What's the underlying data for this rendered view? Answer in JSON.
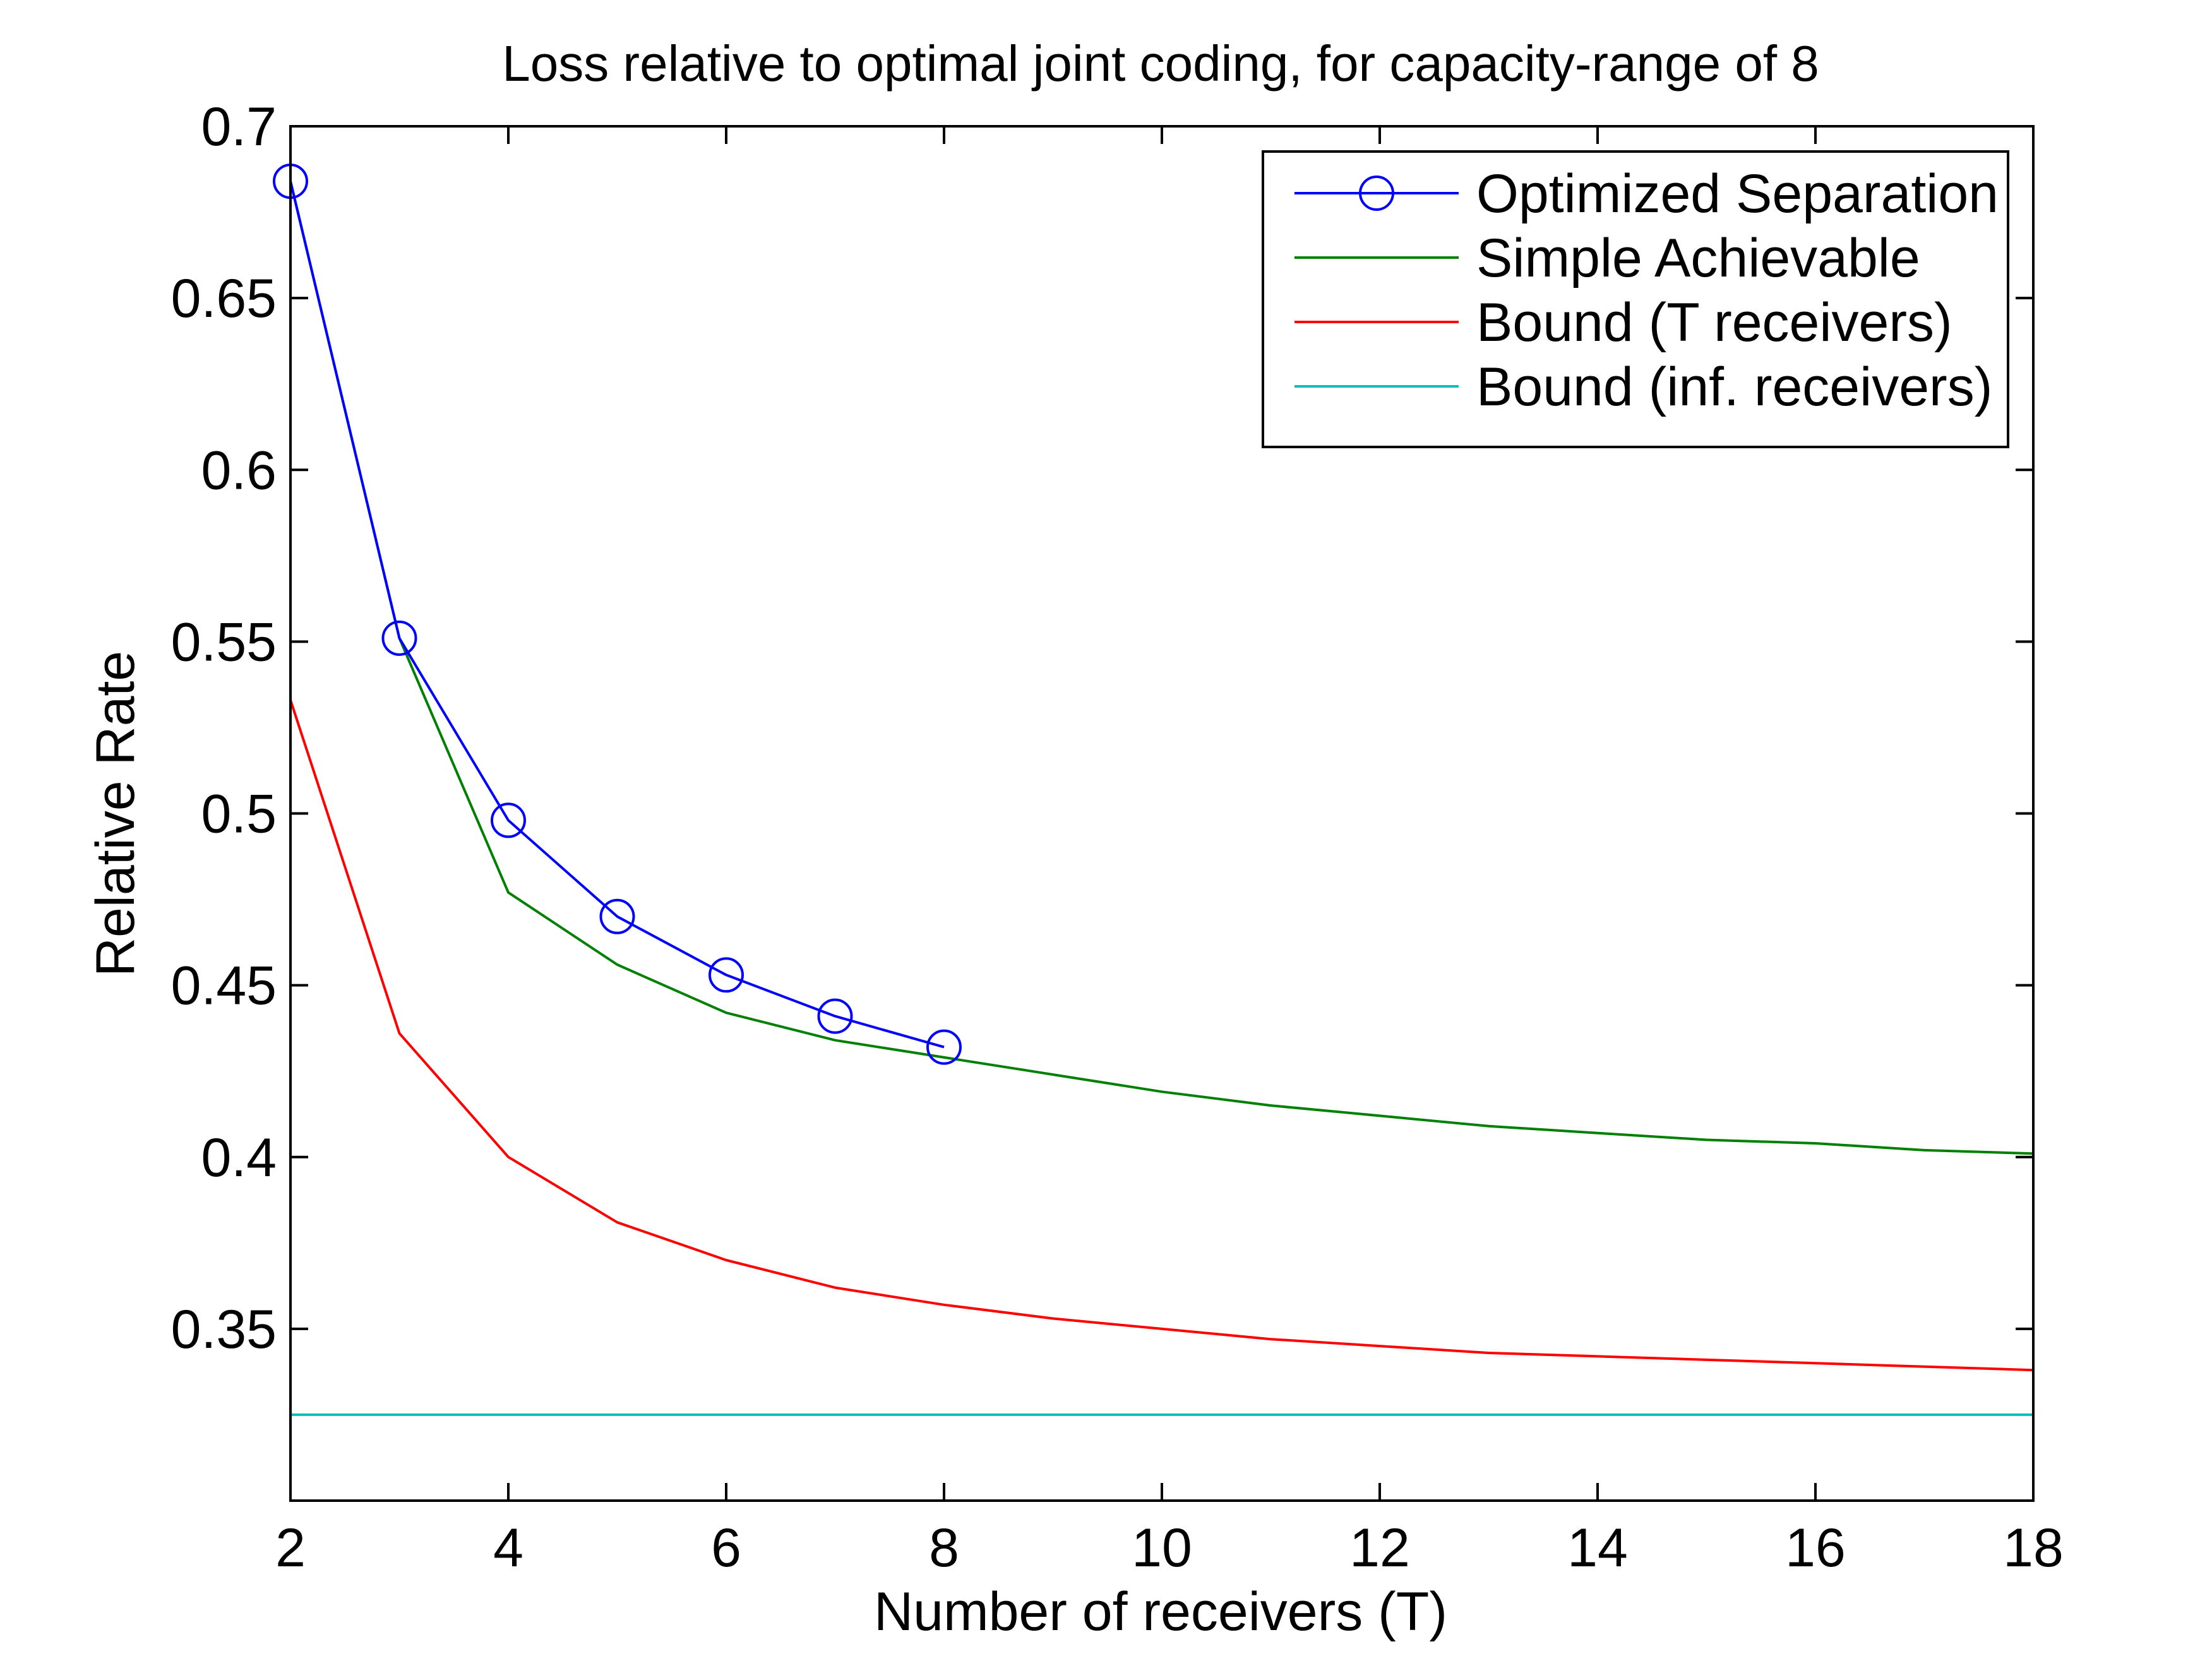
{
  "chart_data": {
    "type": "line",
    "title": "Loss relative to optimal joint coding, for capacity-range of 8",
    "xlabel": "Number of receivers (T)",
    "ylabel": "Relative Rate",
    "xlim": [
      2,
      18
    ],
    "ylim": [
      0.3,
      0.7
    ],
    "xticks": [
      2,
      4,
      6,
      8,
      10,
      12,
      14,
      16,
      18
    ],
    "xtick_labels": [
      "2",
      "4",
      "6",
      "8",
      "10",
      "12",
      "14",
      "16",
      "18"
    ],
    "yticks": [
      0.35,
      0.4,
      0.45,
      0.5,
      0.55,
      0.6,
      0.65,
      0.7
    ],
    "ytick_labels": [
      "0.35",
      "0.4",
      "0.45",
      "0.5",
      "0.55",
      "0.6",
      "0.65",
      "0.7"
    ],
    "grid": false,
    "legend_position": "top-right",
    "series": [
      {
        "name": "Optimized Separation",
        "color": "#0000ff",
        "marker": "circle",
        "x": [
          2,
          3,
          4,
          5,
          6,
          7,
          8
        ],
        "y": [
          0.684,
          0.551,
          0.498,
          0.47,
          0.453,
          0.441,
          0.432
        ]
      },
      {
        "name": "Simple Achievable",
        "color": "#008000",
        "marker": "none",
        "x": [
          2,
          3,
          4,
          5,
          6,
          7,
          8,
          9,
          10,
          11,
          12,
          13,
          14,
          15,
          16,
          17,
          18
        ],
        "y": [
          0.684,
          0.551,
          0.477,
          0.456,
          0.442,
          0.434,
          0.429,
          0.424,
          0.419,
          0.415,
          0.412,
          0.409,
          0.407,
          0.405,
          0.404,
          0.402,
          0.401
        ]
      },
      {
        "name": "Bound (T receivers)",
        "color": "#ff0000",
        "marker": "none",
        "x": [
          2,
          3,
          4,
          5,
          6,
          7,
          8,
          9,
          10,
          11,
          12,
          13,
          14,
          15,
          16,
          17,
          18
        ],
        "y": [
          0.533,
          0.436,
          0.4,
          0.381,
          0.37,
          0.362,
          0.357,
          0.353,
          0.35,
          0.347,
          0.345,
          0.343,
          0.342,
          0.341,
          0.34,
          0.339,
          0.338
        ]
      },
      {
        "name": "Bound (inf. receivers)",
        "color": "#00bfbf",
        "marker": "none",
        "x": [
          2,
          18
        ],
        "y": [
          0.325,
          0.325
        ]
      }
    ]
  }
}
